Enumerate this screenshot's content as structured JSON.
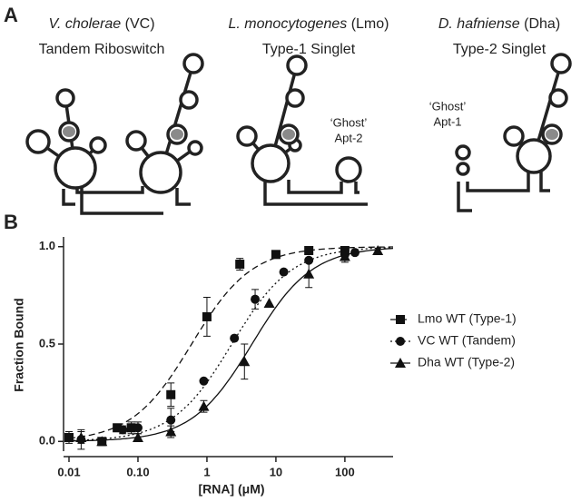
{
  "panel_labels": [
    "A",
    "B"
  ],
  "diagrams": [
    {
      "species": "V. cholerae",
      "abbr": "(VC)",
      "subtitle": "Tandem Riboswitch"
    },
    {
      "species": "L. monocytogenes",
      "abbr": "(Lmo)",
      "subtitle": "Type-1 Singlet",
      "annotation": [
        "‘Ghost’",
        "Apt-2"
      ]
    },
    {
      "species": "D. hafniense",
      "abbr": "(Dha)",
      "subtitle": "Type-2 Singlet",
      "annotation": [
        "‘Ghost’",
        "Apt-1"
      ]
    }
  ],
  "chart_data": {
    "type": "scatter",
    "x_label": "[RNA] (μM)",
    "y_label": "Fraction Bound",
    "xscale": "log",
    "xlim": [
      0.01,
      500
    ],
    "xticks": [
      0.01,
      {
        "value": 0.1,
        "label": "0.10"
      },
      1,
      10,
      100
    ],
    "ylim": [
      -0.05,
      1.05
    ],
    "yticks": [
      {
        "value": 0,
        "label": "0.0"
      },
      0.5,
      {
        "value": 1,
        "label": "1.0"
      }
    ],
    "legend": "right",
    "series": [
      {
        "name": "Lmo WT (Type-1)",
        "color": "#111111",
        "marker": "square",
        "dash": "dashed",
        "x": [
          0.01,
          0.03,
          0.05,
          0.08,
          0.3,
          1,
          3,
          10,
          30,
          100
        ],
        "values": [
          0.02,
          0.0,
          0.07,
          0.07,
          0.24,
          0.64,
          0.91,
          0.96,
          0.98,
          0.98
        ],
        "errors": [
          0.03,
          0.02,
          0.02,
          0.03,
          0.06,
          0.1,
          0.03,
          null,
          null,
          null
        ],
        "fit_kd": 0.6
      },
      {
        "name": "VC WT (Tandem)",
        "color": "#111111",
        "marker": "circle",
        "dash": "dotted",
        "x": [
          0.015,
          0.06,
          0.1,
          0.3,
          0.9,
          2.5,
          5,
          13,
          30,
          100,
          140
        ],
        "values": [
          0.01,
          0.06,
          0.07,
          0.11,
          0.31,
          0.53,
          0.73,
          0.87,
          0.93,
          0.96,
          0.97
        ],
        "errors": [
          0.05,
          0.02,
          0.03,
          0.06,
          null,
          null,
          0.05,
          null,
          null,
          0.03,
          null
        ],
        "fit_kd": 2.3
      },
      {
        "name": "Dha WT (Type-2)",
        "color": "#111111",
        "marker": "triangle",
        "dash": "solid",
        "x": [
          0.015,
          0.03,
          0.1,
          0.3,
          0.9,
          3.5,
          8,
          30,
          100,
          300
        ],
        "values": [
          0.02,
          0.0,
          0.02,
          0.05,
          0.18,
          0.41,
          0.71,
          0.86,
          0.95,
          0.98
        ],
        "errors": [
          0.03,
          0.02,
          0.02,
          0.03,
          0.03,
          0.09,
          null,
          0.07,
          0.03,
          null
        ],
        "fit_kd": 4.5
      }
    ]
  }
}
